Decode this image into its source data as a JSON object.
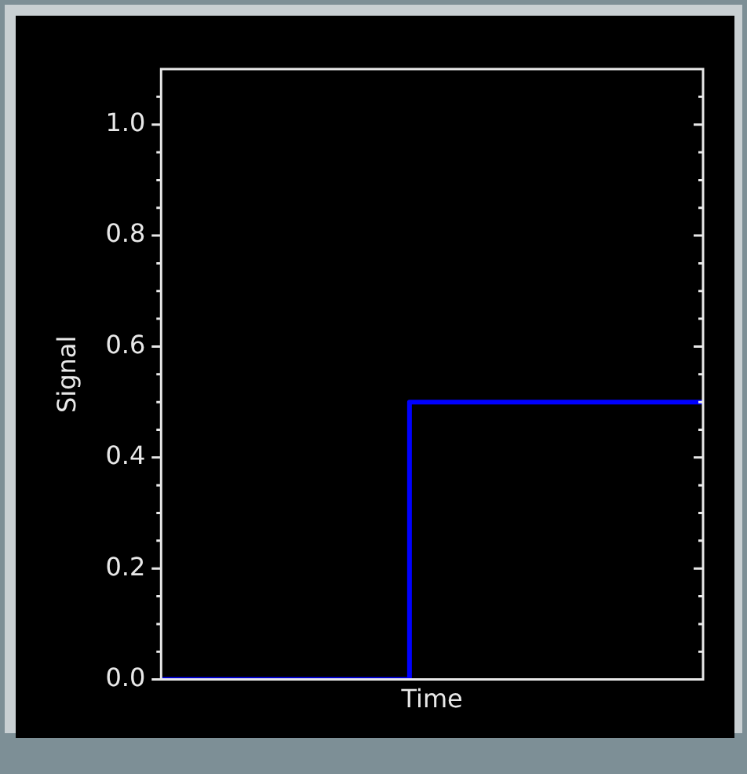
{
  "chart_data": {
    "type": "step",
    "xlabel": "Time",
    "ylabel": "Signal",
    "categories": [
      null,
      null,
      null,
      null,
      null,
      null,
      null,
      null,
      null,
      null,
      null,
      null,
      null,
      null,
      null,
      null,
      null,
      null,
      null,
      null,
      null,
      null,
      null,
      null,
      null
    ],
    "series": [
      {
        "color": "#0000ff",
        "values": [
          0,
          0,
          0,
          0,
          0,
          0,
          0,
          0,
          0,
          0,
          0,
          0.5,
          0.5,
          0.5,
          0.5,
          0.5,
          0.5,
          0.5,
          0.5,
          0.5,
          0.5,
          0.5,
          0.5,
          0.5,
          0.5
        ]
      }
    ],
    "ylim": [
      0,
      1.1
    ],
    "yticks": [
      {
        "value": 0,
        "label": "0.0"
      },
      {
        "value": 0.05,
        "label": null
      },
      {
        "value": 0.1,
        "label": null
      },
      {
        "value": 0.15,
        "label": null
      },
      {
        "value": 0.2,
        "label": "0.2"
      },
      {
        "value": 0.25,
        "label": null
      },
      {
        "value": 0.3,
        "label": null
      },
      {
        "value": 0.35,
        "label": null
      },
      {
        "value": 0.4,
        "label": "0.4"
      },
      {
        "value": 0.45,
        "label": null
      },
      {
        "value": 0.5,
        "label": null
      },
      {
        "value": 0.55,
        "label": null
      },
      {
        "value": 0.6,
        "label": "0.6"
      },
      {
        "value": 0.65,
        "label": null
      },
      {
        "value": 0.7,
        "label": null
      },
      {
        "value": 0.75,
        "label": null
      },
      {
        "value": 0.8,
        "label": "0.8"
      },
      {
        "value": 0.85,
        "label": null
      },
      {
        "value": 0.9,
        "label": null
      },
      {
        "value": 0.95,
        "label": null
      },
      {
        "value": 1.0,
        "label": "1.0"
      },
      {
        "value": 1.05,
        "label": null
      }
    ],
    "tick_labels": "y",
    "legend": false
  }
}
